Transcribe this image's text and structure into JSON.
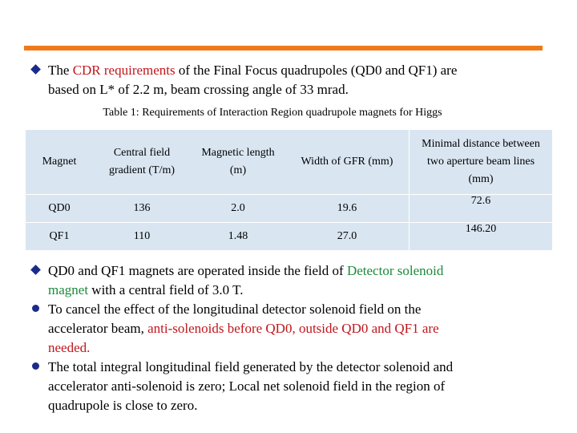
{
  "intro": {
    "line1_prefix": "The ",
    "line1_highlight": "CDR requirements",
    "line1_suffix": " of the Final Focus quadrupoles (QD0 and QF1) are",
    "line2": "based on L* of 2.2 m, beam crossing angle of 33 mrad."
  },
  "table": {
    "caption": "Table 1: Requirements of Interaction Region quadrupole magnets for Higgs",
    "headers": [
      [
        "Magnet"
      ],
      [
        "Central field",
        "gradient (T/m)"
      ],
      [
        "Magnetic length",
        "(m)"
      ],
      [
        "Width of GFR (mm)"
      ],
      [
        "Minimal distance between",
        "two aperture beam lines",
        "(mm)"
      ]
    ],
    "rows": [
      [
        "QD0",
        "136",
        "2.0",
        "19.6",
        "72.6"
      ],
      [
        "QF1",
        "110",
        "1.48",
        "27.0",
        "146.20"
      ]
    ]
  },
  "bullets": {
    "b1_line1_prefix": "QD0 and QF1 magnets are operated inside the field of ",
    "b1_line1_highlight": "Detector solenoid",
    "b1_line2_highlight": "magnet",
    "b1_line2_suffix": " with a central field of 3.0 T.",
    "b2_line1": "To cancel the effect of the longitudinal detector solenoid field on the",
    "b2_line2_prefix": "accelerator beam, ",
    "b2_line2_highlight": "anti-solenoids before QD0, outside QD0 and QF1 are",
    "b2_line3_highlight": "needed.",
    "b3_line1": "The total integral longitudinal field generated by the detector solenoid and",
    "b3_line2": "accelerator anti-solenoid is zero; Local net solenoid field in the region of",
    "b3_line3": "quadrupole is close to zero."
  },
  "colors": {
    "accent_bar": "#f07a1a",
    "bullet": "#1a2b8c",
    "red_text": "#c0161b",
    "green_text": "#1a8a3a",
    "table_fill": "#d9e6f2"
  }
}
